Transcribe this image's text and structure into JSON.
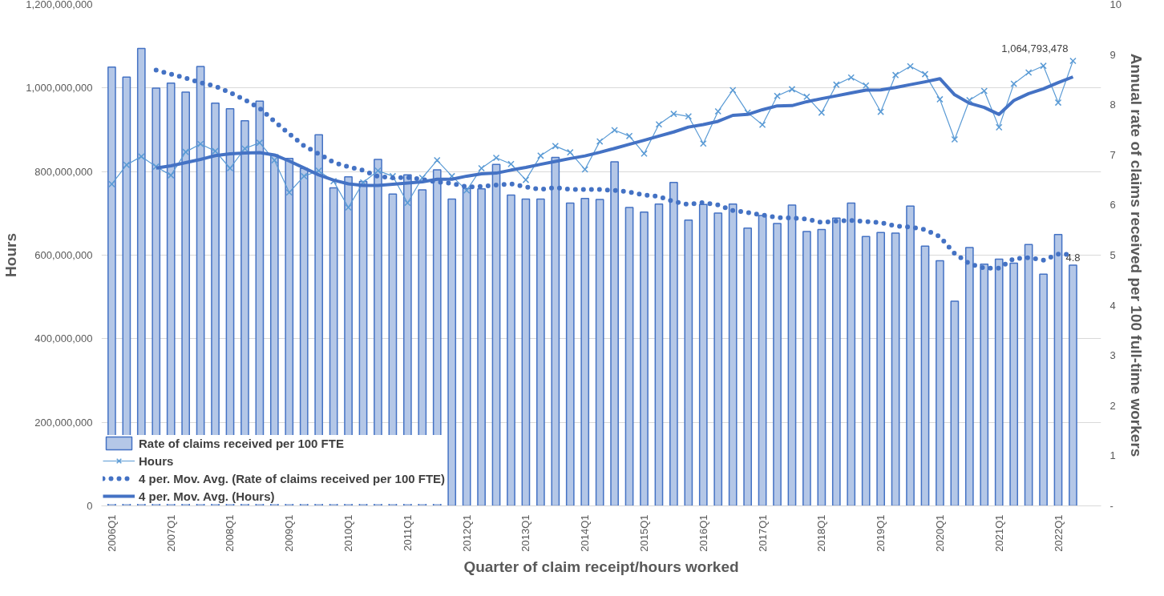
{
  "chart_data": {
    "type": "bar",
    "xlabel": "Quarter of claim receipt/hours worked",
    "ylabel": "Hours",
    "y2label": "Annual rate of claims received per 100 full-time workers",
    "categories": [
      "2006Q1",
      null,
      null,
      null,
      "2007Q1",
      null,
      null,
      null,
      "2008Q1",
      null,
      null,
      null,
      "2009Q1",
      null,
      null,
      null,
      "2010Q1",
      null,
      null,
      null,
      "2011Q1",
      null,
      null,
      null,
      "2012Q1",
      null,
      null,
      null,
      "2013Q1",
      null,
      null,
      null,
      "2014Q1",
      null,
      null,
      null,
      "2015Q1",
      null,
      null,
      null,
      "2016Q1",
      null,
      null,
      null,
      "2017Q1",
      null,
      null,
      null,
      "2018Q1",
      null,
      null,
      null,
      "2019Q1",
      null,
      null,
      null,
      "2020Q1",
      null,
      null,
      null,
      "2021Q1",
      null,
      null,
      null,
      "2022Q1",
      null
    ],
    "ylim": [
      0,
      1200000000
    ],
    "yticks": [
      0,
      {
        "value": 200000000,
        "label": "200,000,000"
      },
      {
        "value": 400000000,
        "label": "400,000,000"
      },
      {
        "value": 600000000,
        "label": "600,000,000"
      },
      {
        "value": 800000000,
        "label": "800,000,000"
      },
      {
        "value": 1000000000,
        "label": "1,000,000,000"
      },
      {
        "value": 1200000000,
        "label": "1,200,000,000"
      }
    ],
    "y2lim": [
      0,
      10
    ],
    "y2ticks": [
      {
        "value": 0,
        "label": "-"
      },
      1,
      2,
      3,
      4,
      5,
      6,
      7,
      8,
      9,
      10
    ],
    "grid": "y",
    "legend": "bottom left",
    "series": [
      {
        "name": "Rate of claims received per 100 FTE",
        "axis": "y2",
        "color": "#b4c7e7",
        "values": [
          8.75,
          8.55,
          9.12,
          8.33,
          8.43,
          8.25,
          8.76,
          8.03,
          7.92,
          7.68,
          8.07,
          7.0,
          6.93,
          6.73,
          7.4,
          6.34,
          6.56,
          6.47,
          6.91,
          6.22,
          6.6,
          6.3,
          6.7,
          6.12,
          6.33,
          6.32,
          6.81,
          6.2,
          6.12,
          6.12,
          6.95,
          6.04,
          6.13,
          6.11,
          6.86,
          5.95,
          5.86,
          6.02,
          6.45,
          5.7,
          6.01,
          5.84,
          6.02,
          5.54,
          5.79,
          5.63,
          6.0,
          5.47,
          5.51,
          5.74,
          6.04,
          5.37,
          5.45,
          5.44,
          5.98,
          5.18,
          4.89,
          4.08,
          5.15,
          4.82,
          4.92,
          4.84,
          5.21,
          4.62,
          5.41,
          4.8
        ],
        "value_labels": [
          null,
          null,
          null,
          null,
          null,
          null,
          null,
          null,
          null,
          null,
          null,
          null,
          null,
          null,
          null,
          null,
          null,
          null,
          null,
          null,
          null,
          null,
          null,
          null,
          null,
          null,
          null,
          null,
          null,
          null,
          null,
          null,
          null,
          null,
          null,
          null,
          null,
          null,
          null,
          null,
          null,
          null,
          null,
          null,
          null,
          null,
          null,
          null,
          null,
          null,
          null,
          null,
          null,
          null,
          null,
          null,
          null,
          null,
          null,
          null,
          null,
          null,
          null,
          null,
          null,
          "4.8"
        ]
      },
      {
        "name": "Hours",
        "type": "line",
        "color": "#5b9bd5",
        "marker": "cross",
        "values": [
          770000000,
          816000000,
          836000000,
          812000000,
          791000000,
          847000000,
          866000000,
          849000000,
          808000000,
          855000000,
          869000000,
          827000000,
          750000000,
          789000000,
          802000000,
          777000000,
          714000000,
          774000000,
          802000000,
          789000000,
          725000000,
          785000000,
          827000000,
          789000000,
          755000000,
          808000000,
          833000000,
          818000000,
          780000000,
          838000000,
          861000000,
          846000000,
          805000000,
          872000000,
          899000000,
          885000000,
          843000000,
          913000000,
          938000000,
          932000000,
          867000000,
          944000000,
          995000000,
          941000000,
          912000000,
          981000000,
          997000000,
          979000000,
          941000000,
          1008000000,
          1025000000,
          1006000000,
          943000000,
          1031000000,
          1052000000,
          1033000000,
          973000000,
          877000000,
          971000000,
          993000000,
          906000000,
          1010000000,
          1037000000,
          1053000000,
          965000000,
          1064793478
        ],
        "value_labels": [
          null,
          null,
          null,
          null,
          null,
          null,
          null,
          null,
          null,
          null,
          null,
          null,
          null,
          null,
          null,
          null,
          null,
          null,
          null,
          null,
          null,
          null,
          null,
          null,
          null,
          null,
          null,
          null,
          null,
          null,
          null,
          null,
          null,
          null,
          null,
          null,
          null,
          null,
          null,
          null,
          null,
          null,
          null,
          null,
          null,
          null,
          null,
          null,
          null,
          null,
          null,
          null,
          null,
          null,
          null,
          null,
          null,
          null,
          null,
          null,
          null,
          null,
          null,
          null,
          null,
          "1,064,793,478"
        ]
      },
      {
        "name": "4 per. Mov. Avg. (Rate of claims received per 100 FTE)",
        "type": "line",
        "axis": "y2",
        "color": "#4472c4",
        "line_style": "dotted",
        "values": [
          null,
          null,
          null,
          8.69,
          8.61,
          8.53,
          8.44,
          8.37,
          8.24,
          8.1,
          7.93,
          7.67,
          7.42,
          7.18,
          7.02,
          6.85,
          6.76,
          6.69,
          6.57,
          6.54,
          6.55,
          6.51,
          6.46,
          6.43,
          6.36,
          6.37,
          6.4,
          6.42,
          6.36,
          6.31,
          6.35,
          6.31,
          6.31,
          6.31,
          6.29,
          6.26,
          6.2,
          6.17,
          6.07,
          6.01,
          6.05,
          6.0,
          5.89,
          5.85,
          5.8,
          5.75,
          5.74,
          5.72,
          5.65,
          5.68,
          5.69,
          5.67,
          5.65,
          5.58,
          5.56,
          5.51,
          5.37,
          5.03,
          4.83,
          4.74,
          4.74,
          4.93,
          4.95,
          4.9,
          5.02,
          5.01
        ]
      },
      {
        "name": "4 per. Mov. Avg. (Hours)",
        "type": "line",
        "color": "#4472c4",
        "line_style": "solid",
        "values": [
          null,
          null,
          null,
          808500000,
          813750000,
          821500000,
          829000000,
          838250000,
          842500000,
          844500000,
          845250000,
          839750000,
          825250000,
          808750000,
          792000000,
          779500000,
          770500000,
          766750000,
          766750000,
          769750000,
          772500000,
          775250000,
          781500000,
          781500000,
          789000000,
          794750000,
          796250000,
          803500000,
          809750000,
          817250000,
          824250000,
          831250000,
          837500000,
          846000000,
          855500000,
          865250000,
          874750000,
          885000000,
          894750000,
          906500000,
          912500000,
          920250000,
          934500000,
          936750000,
          948000000,
          957250000,
          957750000,
          967250000,
          974500000,
          981250000,
          988250000,
          995000000,
          995500000,
          1001250000,
          1008000000,
          1014750000,
          1022250000,
          983750000,
          963500000,
          953500000,
          936750000,
          970000000,
          986500000,
          998000000,
          1012750000,
          1026500000
        ]
      }
    ]
  }
}
